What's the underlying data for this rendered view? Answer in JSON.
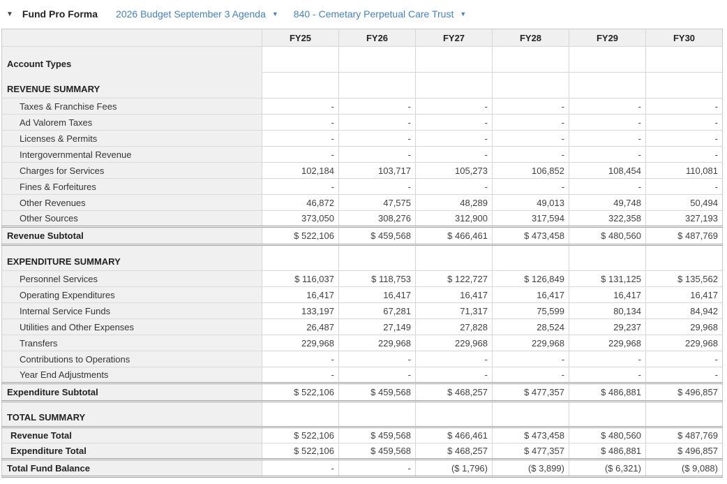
{
  "toolbar": {
    "collapse_icon": "▼",
    "title": "Fund Pro Forma",
    "budget_dropdown_label": "2026 Budget September 3 Agenda",
    "fund_dropdown_label": "840 - Cemetary Perpetual Care Trust",
    "dropdown_icon": "▼"
  },
  "colors": {
    "link_blue": "#4183c4",
    "header_bg": "#f0f0f0",
    "grid_line": "#d6d6d6",
    "subtotal_border": "#a0a0a0"
  },
  "table": {
    "columns": [
      "FY25",
      "FY26",
      "FY27",
      "FY28",
      "FY29",
      "FY30"
    ],
    "rows": [
      {
        "label": "Account Types",
        "type": "section",
        "no_label_border": true,
        "values": [
          "",
          "",
          "",
          "",
          "",
          ""
        ]
      },
      {
        "label": "REVENUE SUMMARY",
        "type": "section",
        "values": [
          "",
          "",
          "",
          "",
          "",
          ""
        ]
      },
      {
        "label": "Taxes & Franchise Fees",
        "type": "item",
        "values": [
          "-",
          "-",
          "-",
          "-",
          "-",
          "-"
        ]
      },
      {
        "label": "Ad Valorem Taxes",
        "type": "item",
        "values": [
          "-",
          "-",
          "-",
          "-",
          "-",
          "-"
        ]
      },
      {
        "label": "Licenses & Permits",
        "type": "item",
        "values": [
          "-",
          "-",
          "-",
          "-",
          "-",
          "-"
        ]
      },
      {
        "label": "Intergovernmental Revenue",
        "type": "item",
        "values": [
          "-",
          "-",
          "-",
          "-",
          "-",
          "-"
        ]
      },
      {
        "label": "Charges for Services",
        "type": "item",
        "values": [
          "102,184",
          "103,717",
          "105,273",
          "106,852",
          "108,454",
          "110,081"
        ]
      },
      {
        "label": "Fines & Forfeitures",
        "type": "item",
        "values": [
          "-",
          "-",
          "-",
          "-",
          "-",
          "-"
        ]
      },
      {
        "label": "Other Revenues",
        "type": "item",
        "values": [
          "46,872",
          "47,575",
          "48,289",
          "49,013",
          "49,748",
          "50,494"
        ]
      },
      {
        "label": "Other Sources",
        "type": "item",
        "values": [
          "373,050",
          "308,276",
          "312,900",
          "317,594",
          "322,358",
          "327,193"
        ]
      },
      {
        "label": "Revenue Subtotal",
        "type": "subtotal",
        "double_top": true,
        "double_bottom": true,
        "values": [
          "$ 522,106",
          "$ 459,568",
          "$ 466,461",
          "$ 473,458",
          "$ 480,560",
          "$ 487,769"
        ]
      },
      {
        "label": "EXPENDITURE SUMMARY",
        "type": "section",
        "values": [
          "",
          "",
          "",
          "",
          "",
          ""
        ]
      },
      {
        "label": "Personnel Services",
        "type": "item",
        "values": [
          "$ 116,037",
          "$ 118,753",
          "$ 122,727",
          "$ 126,849",
          "$ 131,125",
          "$ 135,562"
        ]
      },
      {
        "label": "Operating Expenditures",
        "type": "item",
        "values": [
          "16,417",
          "16,417",
          "16,417",
          "16,417",
          "16,417",
          "16,417"
        ]
      },
      {
        "label": "Internal Service Funds",
        "type": "item",
        "values": [
          "133,197",
          "67,281",
          "71,317",
          "75,599",
          "80,134",
          "84,942"
        ]
      },
      {
        "label": "Utilities and Other Expenses",
        "type": "item",
        "values": [
          "26,487",
          "27,149",
          "27,828",
          "28,524",
          "29,237",
          "29,968"
        ]
      },
      {
        "label": "Transfers",
        "type": "item",
        "values": [
          "229,968",
          "229,968",
          "229,968",
          "229,968",
          "229,968",
          "229,968"
        ]
      },
      {
        "label": "Contributions to Operations",
        "type": "item",
        "values": [
          "-",
          "-",
          "-",
          "-",
          "-",
          "-"
        ]
      },
      {
        "label": "Year End Adjustments",
        "type": "item",
        "values": [
          "-",
          "-",
          "-",
          "-",
          "-",
          "-"
        ]
      },
      {
        "label": "Expenditure Subtotal",
        "type": "subtotal",
        "double_top": true,
        "double_bottom": true,
        "values": [
          "$ 522,106",
          "$ 459,568",
          "$ 468,257",
          "$ 477,357",
          "$ 486,881",
          "$ 496,857"
        ]
      },
      {
        "label": "TOTAL SUMMARY",
        "type": "section",
        "values": [
          "",
          "",
          "",
          "",
          "",
          ""
        ]
      },
      {
        "label": "Revenue Total",
        "type": "total",
        "double_top": true,
        "values": [
          "$ 522,106",
          "$ 459,568",
          "$ 466,461",
          "$ 473,458",
          "$ 480,560",
          "$ 487,769"
        ]
      },
      {
        "label": "Expenditure Total",
        "type": "total",
        "values": [
          "$ 522,106",
          "$ 459,568",
          "$ 468,257",
          "$ 477,357",
          "$ 486,881",
          "$ 496,857"
        ]
      },
      {
        "label": "Total Fund Balance",
        "type": "grand",
        "double_top": true,
        "double_bottom": true,
        "values": [
          "-",
          "-",
          "($ 1,796)",
          "($ 3,899)",
          "($ 6,321)",
          "($ 9,088)"
        ]
      }
    ]
  }
}
